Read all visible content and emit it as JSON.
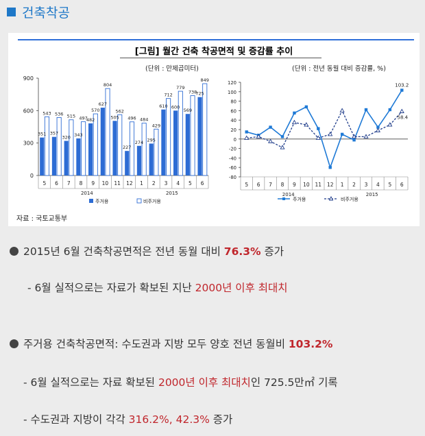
{
  "header": {
    "title": "건축착공"
  },
  "figure": {
    "title": "[그림] 월간 건축 착공면적 및 증감률 추이",
    "unit_left": "(단위 : 만제곱미터)",
    "unit_right": "(단위 : 전년 동월 대비 증감률, %)",
    "source": "자료 : 국토교통부"
  },
  "chart_data": [
    {
      "type": "bar",
      "categories": [
        "5",
        "6",
        "7",
        "8",
        "9",
        "10",
        "11",
        "12",
        "1",
        "2",
        "3",
        "4",
        "5",
        "6"
      ],
      "year_labels": [
        "2014",
        "2015"
      ],
      "series": [
        {
          "name": "주거용",
          "values": [
            351,
            357,
            320,
            343,
            482,
            627,
            505,
            227,
            274,
            295,
            610,
            600,
            569,
            725
          ],
          "color": "#2d6cd4"
        },
        {
          "name": "비주거용",
          "values": [
            543,
            536,
            515,
            497,
            570,
            804,
            562,
            496,
            484,
            429,
            712,
            779,
            738,
            849
          ],
          "color": "#ffffff"
        }
      ],
      "ylim": [
        0,
        900
      ],
      "yticks": [
        0,
        300,
        600,
        900
      ],
      "legend": "bottom"
    },
    {
      "type": "line",
      "categories": [
        "5",
        "6",
        "7",
        "8",
        "9",
        "10",
        "11",
        "12",
        "1",
        "2",
        "3",
        "4",
        "5",
        "6"
      ],
      "year_labels": [
        "2014",
        "2015"
      ],
      "series": [
        {
          "name": "주거용",
          "values": [
            15,
            8,
            25,
            5,
            55,
            68,
            22,
            -60,
            10,
            -2,
            62,
            25,
            62,
            103.2
          ],
          "color": "#1f7ad6"
        },
        {
          "name": "비주거용",
          "values": [
            2,
            5,
            -5,
            -18,
            35,
            30,
            2,
            10,
            60,
            5,
            5,
            18,
            30,
            58.4
          ],
          "color": "#1f3c8a"
        }
      ],
      "end_labels": [
        "103.2",
        "58.4"
      ],
      "ylim": [
        -80,
        120
      ],
      "yticks": [
        -80,
        -60,
        -40,
        -20,
        0,
        20,
        40,
        60,
        80,
        100,
        120
      ],
      "legend": "bottom"
    }
  ],
  "bullets": [
    {
      "pre": "2015년 6월 건축착공면적은 전년 동월 대비 ",
      "hl": "76.3%",
      "post": " 증가"
    },
    {
      "pre": "- 6월 실적으로는 자료가 확보된 지난 ",
      "hl": "2000년 이후 최대치",
      "post": ""
    },
    {
      "pre": "주거용 건축착공면적: 수도권과 지방 모두 양호 전년 동월비 ",
      "hl": "103.2%",
      "post": ""
    },
    {
      "pre": "- 6월 실적으로는 자료 확보된 ",
      "hl": "2000년 이후 최대치",
      "post": "인 725.5만㎡ 기록"
    },
    {
      "pre": "- 수도권과 지방이 각각 ",
      "hl": "316.2%, 42.3%",
      "post": " 증가"
    }
  ]
}
